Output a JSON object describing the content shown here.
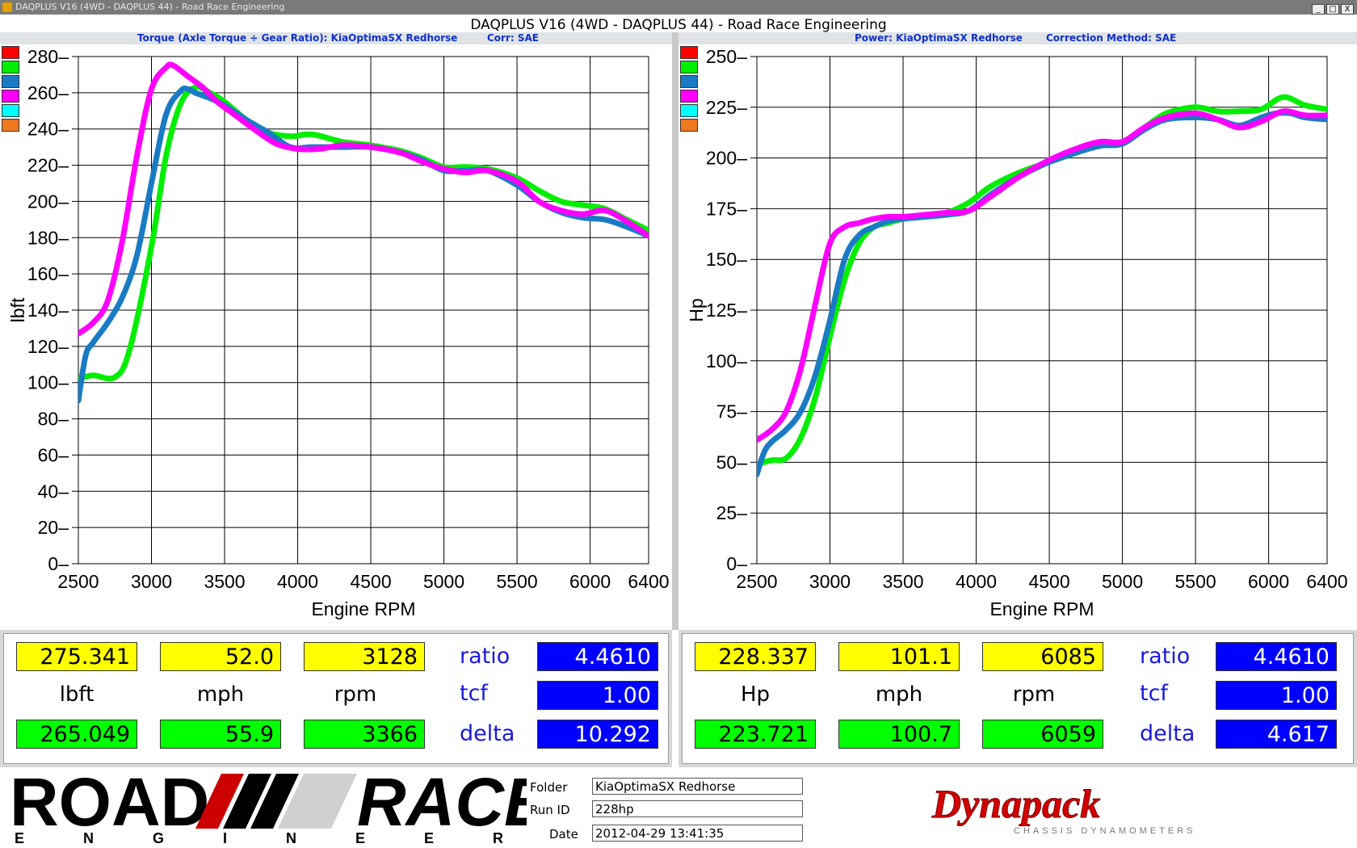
{
  "window": {
    "title": "DAQPLUS V16 (4WD - DAQPLUS 44) - Road Race Engineering",
    "main_title": "DAQPLUS V16 (4WD - DAQPLUS 44) - Road Race Engineering",
    "buttons": [
      "_",
      "□",
      "X"
    ]
  },
  "left_panel": {
    "subtitle": "Torque (Axle Torque ÷ Gear Ratio): KiaOptimaSX Redhorse",
    "corr": "Corr: SAE"
  },
  "right_panel": {
    "subtitle": "Power: KiaOptimaSX Redhorse",
    "corr": "Correction Method: SAE"
  },
  "run_colors": [
    "#ff0000",
    "#00ee00",
    "#1a7bc4",
    "#ff00ff",
    "#00ffff",
    "#f07820"
  ],
  "chart_data": [
    {
      "type": "line",
      "xlabel": "Engine RPM",
      "ylabel": "lbft",
      "xlim": [
        2500,
        6400
      ],
      "ylim": [
        0,
        280
      ],
      "xticks": [
        2500,
        3000,
        3500,
        4000,
        4500,
        5000,
        5500,
        6000,
        6400
      ],
      "yticks": [
        0,
        20,
        40,
        60,
        80,
        100,
        120,
        140,
        160,
        180,
        200,
        220,
        240,
        260,
        280
      ],
      "grid": true,
      "series": [
        {
          "color": "#00ee00",
          "x": [
            2500,
            2600,
            2750,
            2850,
            3000,
            3100,
            3200,
            3300,
            3400,
            3500,
            3650,
            3800,
            3950,
            4100,
            4300,
            4500,
            4700,
            4850,
            5000,
            5150,
            5300,
            5500,
            5650,
            5800,
            5950,
            6100,
            6250,
            6400
          ],
          "y": [
            102,
            104,
            103,
            118,
            175,
            225,
            254,
            263,
            260,
            255,
            245,
            238,
            236,
            237,
            233,
            231,
            228,
            224,
            219,
            219,
            218,
            213,
            206,
            200,
            198,
            196,
            190,
            184
          ]
        },
        {
          "color": "#1a7bc4",
          "x": [
            2500,
            2550,
            2600,
            2700,
            2800,
            2900,
            3000,
            3100,
            3200,
            3250,
            3300,
            3400,
            3500,
            3650,
            3800,
            3950,
            4100,
            4300,
            4500,
            4700,
            4850,
            5000,
            5150,
            5300,
            5500,
            5650,
            5800,
            5950,
            6100,
            6250,
            6400
          ],
          "y": [
            90,
            115,
            122,
            133,
            147,
            170,
            210,
            248,
            261,
            262,
            260,
            257,
            253,
            245,
            238,
            230,
            230,
            230,
            230,
            227,
            223,
            217,
            217,
            217,
            209,
            200,
            194,
            191,
            190,
            186,
            181
          ]
        },
        {
          "color": "#ff00ff",
          "x": [
            2500,
            2600,
            2700,
            2800,
            2900,
            3000,
            3100,
            3150,
            3250,
            3350,
            3450,
            3550,
            3700,
            3850,
            4000,
            4150,
            4300,
            4500,
            4700,
            4850,
            5000,
            5150,
            5300,
            5500,
            5650,
            5800,
            5950,
            6100,
            6250,
            6400
          ],
          "y": [
            127,
            133,
            145,
            178,
            225,
            262,
            274,
            275,
            269,
            263,
            255,
            249,
            240,
            232,
            229,
            229,
            231,
            230,
            227,
            222,
            218,
            216,
            217,
            211,
            200,
            195,
            193,
            195,
            189,
            181
          ]
        }
      ],
      "readout": {
        "top": [
          "275.341",
          "52.0",
          "3128"
        ],
        "units": [
          "lbft",
          "mph",
          "rpm"
        ],
        "bottom": [
          "265.049",
          "55.9",
          "3366"
        ],
        "labels": [
          "ratio",
          "tcf",
          "delta"
        ],
        "values": [
          "4.4610",
          "1.00",
          "10.292"
        ]
      }
    },
    {
      "type": "line",
      "xlabel": "Engine RPM",
      "ylabel": "Hp",
      "xlim": [
        2500,
        6400
      ],
      "ylim": [
        0,
        250
      ],
      "xticks": [
        2500,
        3000,
        3500,
        4000,
        4500,
        5000,
        5500,
        6000,
        6400
      ],
      "yticks": [
        0,
        25,
        50,
        75,
        100,
        125,
        150,
        175,
        200,
        225,
        250
      ],
      "grid": true,
      "series": [
        {
          "color": "#00ee00",
          "x": [
            2500,
            2600,
            2700,
            2800,
            2900,
            3000,
            3100,
            3200,
            3300,
            3400,
            3500,
            3650,
            3800,
            3950,
            4100,
            4300,
            4500,
            4700,
            4850,
            5000,
            5150,
            5300,
            5500,
            5650,
            5800,
            5950,
            6100,
            6250,
            6400
          ],
          "y": [
            49,
            51,
            52,
            62,
            82,
            112,
            140,
            158,
            166,
            168,
            170,
            171,
            173,
            178,
            186,
            193,
            198,
            203,
            207,
            208,
            215,
            222,
            225,
            223,
            223,
            224,
            230,
            226,
            224
          ]
        },
        {
          "color": "#1a7bc4",
          "x": [
            2500,
            2550,
            2600,
            2700,
            2800,
            2900,
            3000,
            3100,
            3200,
            3300,
            3400,
            3500,
            3650,
            3800,
            3950,
            4100,
            4300,
            4500,
            4700,
            4850,
            5000,
            5150,
            5300,
            5500,
            5650,
            5800,
            5950,
            6050,
            6150,
            6250,
            6400
          ],
          "y": [
            44,
            55,
            60,
            66,
            75,
            93,
            120,
            150,
            162,
            166,
            169,
            170,
            171,
            172,
            174,
            182,
            191,
            198,
            203,
            206,
            207,
            214,
            219,
            220,
            219,
            216,
            220,
            222,
            222,
            220,
            219
          ]
        },
        {
          "color": "#ff00ff",
          "x": [
            2500,
            2600,
            2700,
            2800,
            2900,
            3000,
            3100,
            3200,
            3300,
            3400,
            3500,
            3650,
            3800,
            3950,
            4100,
            4300,
            4500,
            4700,
            4850,
            5000,
            5150,
            5300,
            5500,
            5650,
            5800,
            5950,
            6100,
            6250,
            6400
          ],
          "y": [
            61,
            66,
            75,
            96,
            128,
            158,
            166,
            168,
            170,
            171,
            171,
            172,
            173,
            174,
            181,
            191,
            199,
            205,
            208,
            208,
            215,
            220,
            222,
            219,
            215,
            218,
            223,
            221,
            221
          ]
        }
      ],
      "readout": {
        "top": [
          "228.337",
          "101.1",
          "6085"
        ],
        "units": [
          "Hp",
          "mph",
          "rpm"
        ],
        "bottom": [
          "223.721",
          "100.7",
          "6059"
        ],
        "labels": [
          "ratio",
          "tcf",
          "delta"
        ],
        "values": [
          "4.4610",
          "1.00",
          "4.617"
        ]
      }
    }
  ],
  "footer": {
    "logo_road": "ROAD",
    "logo_race": "RACE",
    "logo_engineering": "E N G I N E E R I N G",
    "folder_label": "Folder",
    "folder_value": "KiaOptimaSX Redhorse",
    "runid_label": "Run ID",
    "runid_value": "228hp",
    "date_label": "Date",
    "date_value": "2012-04-29 13:41:35",
    "dynapack": "Dynapack",
    "dynapack_sub": "CHASSIS DYNAMOMETERS"
  }
}
